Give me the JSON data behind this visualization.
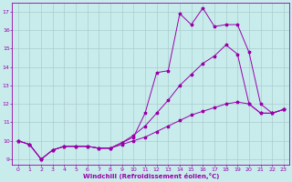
{
  "bg_color": "#c8ecec",
  "line_color": "#9900aa",
  "grid_color": "#aacccc",
  "xlabel": "Windchill (Refroidissement éolien,°C)",
  "xlim": [
    -0.5,
    23.5
  ],
  "ylim": [
    8.7,
    17.5
  ],
  "yticks": [
    9,
    10,
    11,
    12,
    13,
    14,
    15,
    16,
    17
  ],
  "xticks": [
    0,
    1,
    2,
    3,
    4,
    5,
    6,
    7,
    8,
    9,
    10,
    11,
    12,
    13,
    14,
    15,
    16,
    17,
    18,
    19,
    20,
    21,
    22,
    23
  ],
  "line1_x": [
    0,
    1,
    2,
    3,
    4,
    5,
    6,
    7,
    8,
    9,
    10,
    11,
    12,
    13,
    14,
    15,
    16,
    17,
    18,
    19,
    20,
    21,
    22,
    23
  ],
  "line1_y": [
    10.0,
    9.8,
    9.0,
    9.5,
    9.7,
    9.7,
    9.7,
    9.6,
    9.6,
    9.9,
    10.2,
    11.5,
    13.7,
    13.8,
    16.9,
    16.3,
    17.2,
    16.2,
    16.3,
    16.3,
    14.8,
    12.0,
    11.5,
    11.7
  ],
  "line2_x": [
    0,
    1,
    2,
    3,
    4,
    5,
    6,
    7,
    8,
    9,
    10,
    11,
    12,
    13,
    14,
    15,
    16,
    17,
    18,
    19,
    20,
    21,
    22,
    23
  ],
  "line2_y": [
    10.0,
    9.8,
    9.0,
    9.5,
    9.7,
    9.7,
    9.7,
    9.6,
    9.6,
    9.9,
    10.3,
    10.8,
    11.5,
    12.2,
    13.0,
    13.6,
    14.2,
    14.6,
    15.2,
    14.7,
    12.0,
    11.5,
    11.5,
    11.7
  ],
  "line3_x": [
    0,
    1,
    2,
    3,
    4,
    5,
    6,
    7,
    8,
    9,
    10,
    11,
    12,
    13,
    14,
    15,
    16,
    17,
    18,
    19,
    20,
    21,
    22,
    23
  ],
  "line3_y": [
    10.0,
    9.8,
    9.0,
    9.5,
    9.7,
    9.7,
    9.7,
    9.6,
    9.6,
    9.8,
    10.0,
    10.2,
    10.5,
    10.8,
    11.1,
    11.4,
    11.6,
    11.8,
    12.0,
    12.1,
    12.0,
    11.5,
    11.5,
    11.7
  ]
}
